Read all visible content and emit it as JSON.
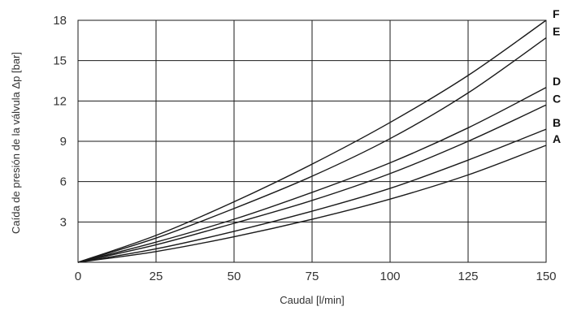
{
  "chart_data": {
    "type": "line",
    "title": "",
    "xlabel": "Caudal [l/min]",
    "ylabel": "Caída de presión de la válvula Δp [bar]",
    "xlim": [
      0,
      150
    ],
    "ylim": [
      0,
      18
    ],
    "xticks": [
      0,
      25,
      50,
      75,
      100,
      125,
      150
    ],
    "yticks": [
      3,
      6,
      9,
      12,
      15,
      18
    ],
    "grid": true,
    "legend": "right",
    "x": [
      0,
      25,
      50,
      75,
      100,
      125,
      150
    ],
    "series": [
      {
        "name": "A",
        "values": [
          0,
          0.8,
          1.9,
          3.2,
          4.7,
          6.5,
          8.7
        ]
      },
      {
        "name": "B",
        "values": [
          0,
          1.0,
          2.3,
          3.8,
          5.5,
          7.6,
          9.9
        ]
      },
      {
        "name": "C",
        "values": [
          0,
          1.3,
          2.9,
          4.6,
          6.6,
          9.0,
          11.7
        ]
      },
      {
        "name": "D",
        "values": [
          0,
          1.5,
          3.2,
          5.2,
          7.4,
          10.0,
          13.0
        ]
      },
      {
        "name": "E",
        "values": [
          0,
          1.8,
          4.0,
          6.4,
          9.2,
          12.6,
          16.7
        ]
      },
      {
        "name": "F",
        "values": [
          0,
          2.0,
          4.5,
          7.3,
          10.4,
          13.9,
          18.0
        ]
      }
    ]
  }
}
